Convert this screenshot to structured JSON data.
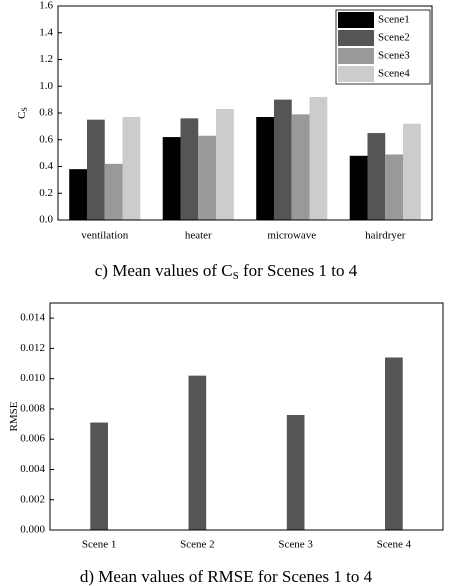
{
  "chart_data": [
    {
      "type": "bar",
      "ylabel": [
        "C",
        "S"
      ],
      "caption": [
        "c) Mean values of C",
        "S",
        " for Scenes 1 to 4"
      ],
      "categories": [
        "ventilation",
        "heater",
        "microwave",
        "hairdryer"
      ],
      "series": [
        {
          "name": "Scene1",
          "color": "#000000",
          "values": [
            0.38,
            0.62,
            0.77,
            0.48
          ]
        },
        {
          "name": "Scene2",
          "color": "#555555",
          "values": [
            0.75,
            0.76,
            0.9,
            0.65
          ]
        },
        {
          "name": "Scene3",
          "color": "#999999",
          "values": [
            0.42,
            0.63,
            0.79,
            0.49
          ]
        },
        {
          "name": "Scene4",
          "color": "#cccccc",
          "values": [
            0.77,
            0.83,
            0.92,
            0.72
          ]
        }
      ],
      "ylim": [
        0,
        1.6
      ],
      "yticks": [
        {
          "value": 0,
          "label": "0.0"
        },
        0.2,
        0.4,
        0.6,
        0.8,
        {
          "value": 1,
          "label": "1.0"
        },
        1.2,
        1.4,
        1.6
      ],
      "legend": "top-right"
    },
    {
      "type": "bar",
      "ylabel": [
        "RMSE"
      ],
      "caption": [
        "d) Mean values of RMSE for Scenes 1 to 4"
      ],
      "categories": [
        "Scene 1",
        "Scene 2",
        "Scene 3",
        "Scene 4"
      ],
      "values": [
        0.0071,
        0.0102,
        0.0076,
        0.0114
      ],
      "color": "#555555",
      "ylim": [
        0,
        0.015
      ],
      "yticks": [
        {
          "value": 0,
          "label": "0.000"
        },
        0.002,
        0.004,
        0.006,
        0.008,
        {
          "value": 0.01,
          "label": "0.010"
        },
        0.012,
        0.014
      ]
    }
  ]
}
